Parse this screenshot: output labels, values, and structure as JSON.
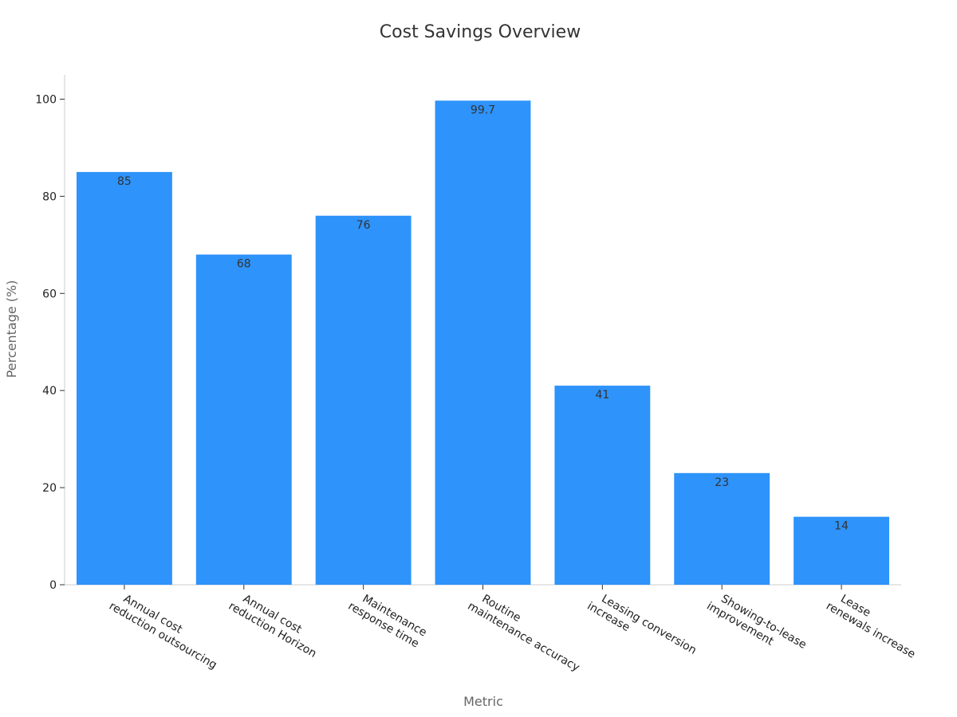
{
  "chart_data": {
    "type": "bar",
    "title": "Cost Savings Overview",
    "xlabel": "Metric",
    "ylabel": "Percentage (%)",
    "ylim": [
      0,
      105
    ],
    "yticks": [
      0,
      20,
      40,
      60,
      80,
      100
    ],
    "grid": false,
    "bar_color": "#2e93fa",
    "categories": [
      [
        "Annual cost",
        "reduction outsourcing"
      ],
      [
        "Annual cost",
        "reduction Horizon"
      ],
      [
        "Maintenance",
        "response time"
      ],
      [
        "Routine",
        "maintenance accuracy"
      ],
      [
        "Leasing conversion",
        "increase"
      ],
      [
        "Showing-to-lease",
        "improvement"
      ],
      [
        "Lease",
        "renewals increase"
      ]
    ],
    "values": [
      85,
      68,
      76,
      99.7,
      41,
      23,
      14
    ],
    "value_labels": [
      "85",
      "68",
      "76",
      "99.7",
      "41",
      "23",
      "14"
    ]
  }
}
